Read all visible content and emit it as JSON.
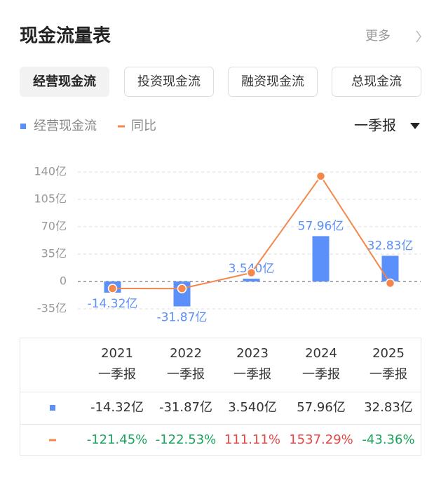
{
  "header": {
    "title": "现金流量表",
    "more": "更多"
  },
  "tabs": [
    "经营现金流",
    "投资现金流",
    "融资现金流",
    "总现金流"
  ],
  "period": "一季报",
  "chart_data": {
    "type": "bar_line",
    "categories": [
      "2021",
      "2022",
      "2023",
      "2024",
      "2025"
    ],
    "series": [
      {
        "name": "经营现金流",
        "type": "bar",
        "color": "#5b8ff9",
        "values": [
          -14.32,
          -31.87,
          3.54,
          57.96,
          32.83
        ],
        "value_labels": [
          "-14.32亿",
          "-31.87亿",
          "3.540亿",
          "57.96亿",
          "32.83亿"
        ]
      },
      {
        "name": "同比",
        "type": "line",
        "color": "#f4874b",
        "axis": "y2",
        "values": [
          -121.45,
          -122.53,
          111.11,
          1537.29,
          -43.36
        ],
        "value_labels": [
          "-121.45%",
          "-122.53%",
          "111.11%",
          "1537.29%",
          "-43.36%"
        ]
      }
    ],
    "ylim": [
      -35,
      140
    ],
    "yticks": [
      {
        "value": 140,
        "label": "140亿"
      },
      {
        "value": 105,
        "label": "105亿"
      },
      {
        "value": 70,
        "label": "70亿"
      },
      {
        "value": 35,
        "label": "35亿"
      },
      0,
      {
        "value": -35,
        "label": "-35亿"
      }
    ],
    "y2lim": [
      -422,
      1599
    ],
    "grid": true
  }
}
